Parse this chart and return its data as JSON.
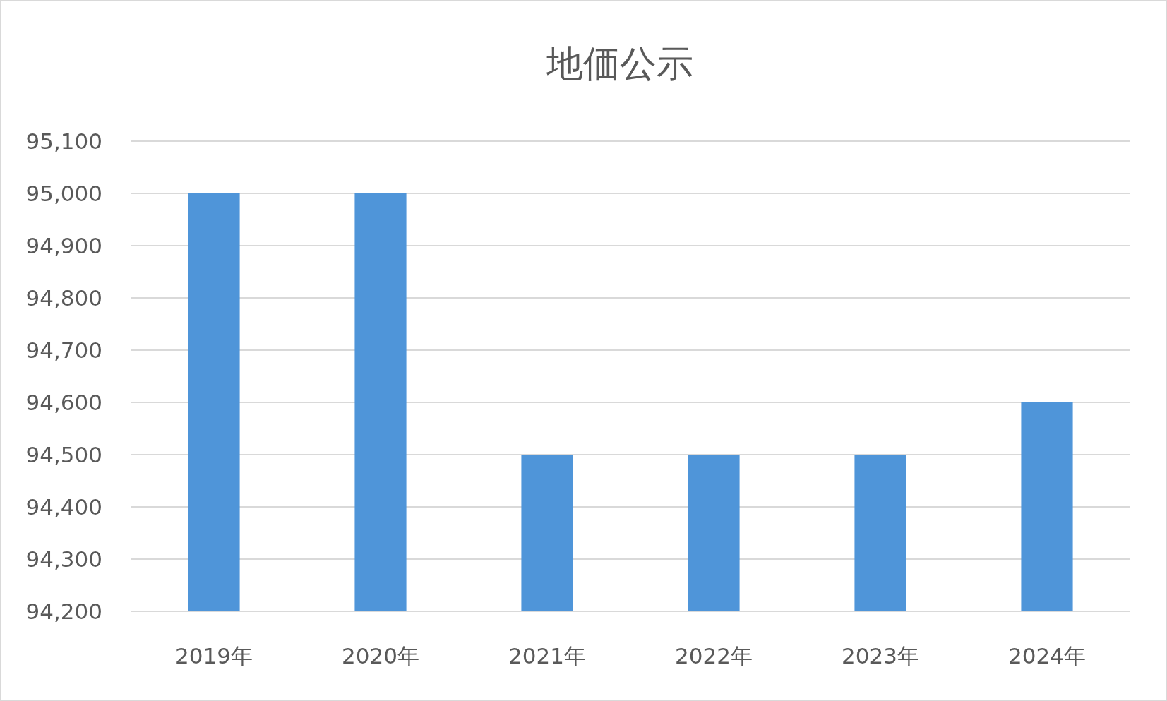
{
  "chart_data": {
    "type": "bar",
    "title": "地価公示",
    "categories": [
      "2019年",
      "2020年",
      "2021年",
      "2022年",
      "2023年",
      "2024年"
    ],
    "values": [
      95000,
      95000,
      94500,
      94500,
      94500,
      94600
    ],
    "color": "#4f95d9",
    "ylim": [
      94200,
      95100
    ],
    "yticks": [
      {
        "value": 94200,
        "label": "94,200"
      },
      {
        "value": 94300,
        "label": "94,300"
      },
      {
        "value": 94400,
        "label": "94,400"
      },
      {
        "value": 94500,
        "label": "94,500"
      },
      {
        "value": 94600,
        "label": "94,600"
      },
      {
        "value": 94700,
        "label": "94,700"
      },
      {
        "value": 94800,
        "label": "94,800"
      },
      {
        "value": 94900,
        "label": "94,900"
      },
      {
        "value": 95000,
        "label": "95,000"
      },
      {
        "value": 95100,
        "label": "95,100"
      }
    ],
    "grid": true
  }
}
